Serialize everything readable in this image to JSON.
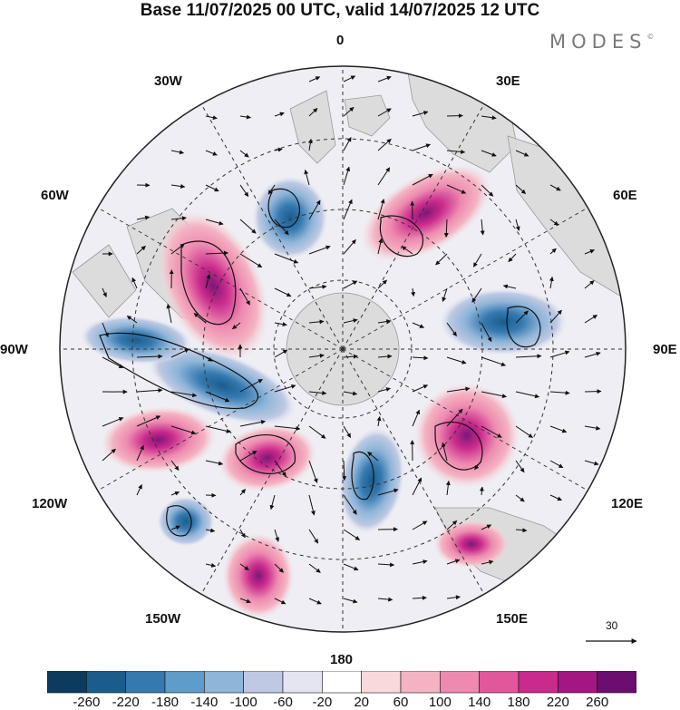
{
  "title": "Base 11/07/2025 00 UTC, valid 14/07/2025 12 UTC",
  "brand": "MODES",
  "brand_mark": "©",
  "map": {
    "projection": "north-polar-stereographic",
    "meridian_labels": {
      "m0": "0",
      "m30e": "30E",
      "m60e": "60E",
      "m90e": "90E",
      "m120e": "120E",
      "m150e": "150E",
      "m180": "180",
      "m150w": "150W",
      "m120w": "120W",
      "m90w": "90W",
      "m60w": "60W",
      "m30w": "30W"
    },
    "reference_vector": "30"
  },
  "colorbar": {
    "colors": [
      "#0c3b5e",
      "#1a5d8c",
      "#3579b0",
      "#5e9cc9",
      "#8fb5d9",
      "#bfc9e3",
      "#e4e5f1",
      "#ffffff",
      "#f9d9dc",
      "#f4b3c3",
      "#ee8ab0",
      "#e2569c",
      "#c92a8c",
      "#a41782",
      "#6b0e70"
    ],
    "tick_labels": [
      "-260",
      "-220",
      "-180",
      "-140",
      "-100",
      "-60",
      "-20",
      "20",
      "60",
      "100",
      "140",
      "180",
      "220",
      "260"
    ]
  },
  "anomalies": [
    {
      "name": "positive-anomaly-nw-canada",
      "value": 240
    },
    {
      "name": "negative-anomaly-ne-pacific",
      "value": -200
    },
    {
      "name": "negative-anomaly-north-pacific",
      "value": -180
    },
    {
      "name": "positive-anomaly-north-pacific",
      "value": 200
    },
    {
      "name": "positive-anomaly-central-pacific",
      "value": 200
    },
    {
      "name": "positive-anomaly-east-siberia",
      "value": 240
    },
    {
      "name": "negative-anomaly-central-asia",
      "value": -180
    },
    {
      "name": "positive-anomaly-europe",
      "value": 150
    },
    {
      "name": "negative-anomaly-north-atlantic",
      "value": -150
    },
    {
      "name": "negative-anomaly-bering",
      "value": -120
    },
    {
      "name": "positive-anomaly-japan",
      "value": 100
    },
    {
      "name": "negative-anomaly-eastern-pacific",
      "value": -120
    },
    {
      "name": "positive-anomaly-scandinavia",
      "value": 120
    }
  ]
}
